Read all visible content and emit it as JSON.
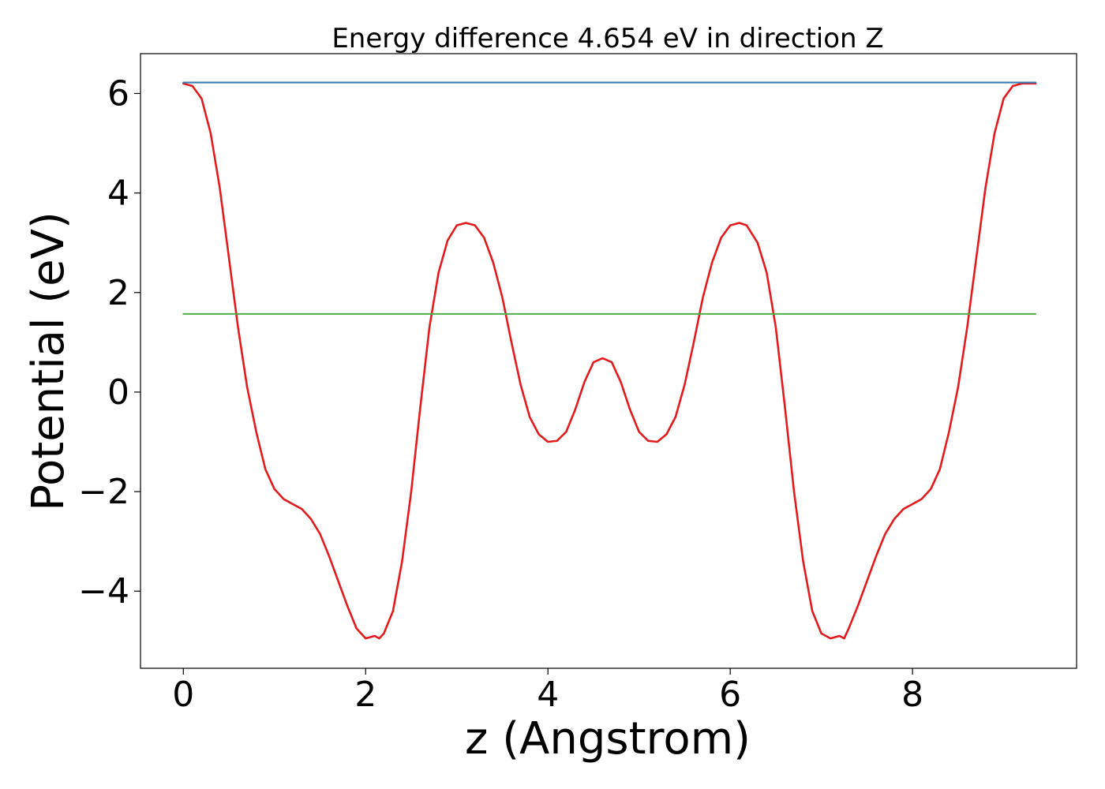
{
  "chart_data": {
    "type": "line",
    "title": "Energy difference 4.654 eV in direction Z",
    "xlabel": "z (Angstrom)",
    "ylabel": "Potential (eV)",
    "xlim": [
      -0.47,
      9.8
    ],
    "ylim": [
      -5.55,
      6.8
    ],
    "x_ticks": [
      0,
      2,
      4,
      6,
      8
    ],
    "x_tick_labels": [
      "0",
      "2",
      "4",
      "6",
      "8"
    ],
    "y_ticks": [
      -4,
      -2,
      0,
      2,
      4,
      6
    ],
    "y_tick_labels": [
      "−4",
      "−2",
      "0",
      "2",
      "4",
      "6"
    ],
    "grid": false,
    "legend": "none",
    "colors": {
      "potential": "#e41a1c",
      "upper_level": "#377eb8",
      "lower_level": "#4daf4a"
    },
    "series": [
      {
        "x": [
          0,
          0.1,
          0.2,
          0.3,
          0.4,
          0.5,
          0.6,
          0.7,
          0.8,
          0.9,
          1.0,
          1.1,
          1.2,
          1.3,
          1.4,
          1.5,
          1.6,
          1.7,
          1.8,
          1.9,
          2.0,
          2.1,
          2.15,
          2.2,
          2.3,
          2.4,
          2.5,
          2.6,
          2.7,
          2.8,
          2.9,
          3.0,
          3.1,
          3.2,
          3.3,
          3.4,
          3.5,
          3.6,
          3.7,
          3.8,
          3.9,
          4.0,
          4.1,
          4.2,
          4.3,
          4.4,
          4.5,
          4.6,
          4.7,
          4.8,
          4.9,
          5.0,
          5.1,
          5.2,
          5.3,
          5.4,
          5.5,
          5.6,
          5.7,
          5.8,
          5.9,
          6.0,
          6.1,
          6.18,
          6.3,
          6.4,
          6.5,
          6.6,
          6.7,
          6.8,
          6.9,
          7.0,
          7.1,
          7.2,
          7.25,
          7.3,
          7.4,
          7.5,
          7.6,
          7.7,
          7.8,
          7.9,
          8.0,
          8.1,
          8.2,
          8.3,
          8.4,
          8.5,
          8.6,
          8.7,
          8.8,
          8.9,
          9.0,
          9.1,
          9.2,
          9.3,
          9.35
        ],
        "values": [
          6.2,
          6.15,
          5.9,
          5.2,
          4.1,
          2.7,
          1.3,
          0.1,
          -0.8,
          -1.55,
          -1.95,
          -2.15,
          -2.25,
          -2.35,
          -2.55,
          -2.85,
          -3.3,
          -3.8,
          -4.3,
          -4.75,
          -4.95,
          -4.9,
          -4.95,
          -4.85,
          -4.4,
          -3.4,
          -2.0,
          -0.3,
          1.3,
          2.4,
          3.05,
          3.35,
          3.4,
          3.35,
          3.1,
          2.6,
          1.9,
          1.0,
          0.15,
          -0.5,
          -0.85,
          -1.0,
          -0.98,
          -0.8,
          -0.35,
          0.2,
          0.6,
          0.68,
          0.6,
          0.2,
          -0.35,
          -0.8,
          -0.98,
          -1.0,
          -0.85,
          -0.5,
          0.15,
          1.0,
          1.9,
          2.6,
          3.1,
          3.35,
          3.4,
          3.35,
          3.0,
          2.4,
          1.3,
          -0.3,
          -2.0,
          -3.4,
          -4.4,
          -4.85,
          -4.95,
          -4.9,
          -4.95,
          -4.75,
          -4.3,
          -3.8,
          -3.3,
          -2.85,
          -2.55,
          -2.35,
          -2.25,
          -2.15,
          -1.95,
          -1.55,
          -0.8,
          0.1,
          1.3,
          2.7,
          4.1,
          5.2,
          5.9,
          6.15,
          6.2,
          6.2,
          6.2
        ]
      },
      {
        "x": [
          0,
          9.35
        ],
        "values": [
          6.22,
          6.22
        ]
      },
      {
        "x": [
          0,
          9.35
        ],
        "values": [
          1.57,
          1.57
        ]
      }
    ]
  }
}
